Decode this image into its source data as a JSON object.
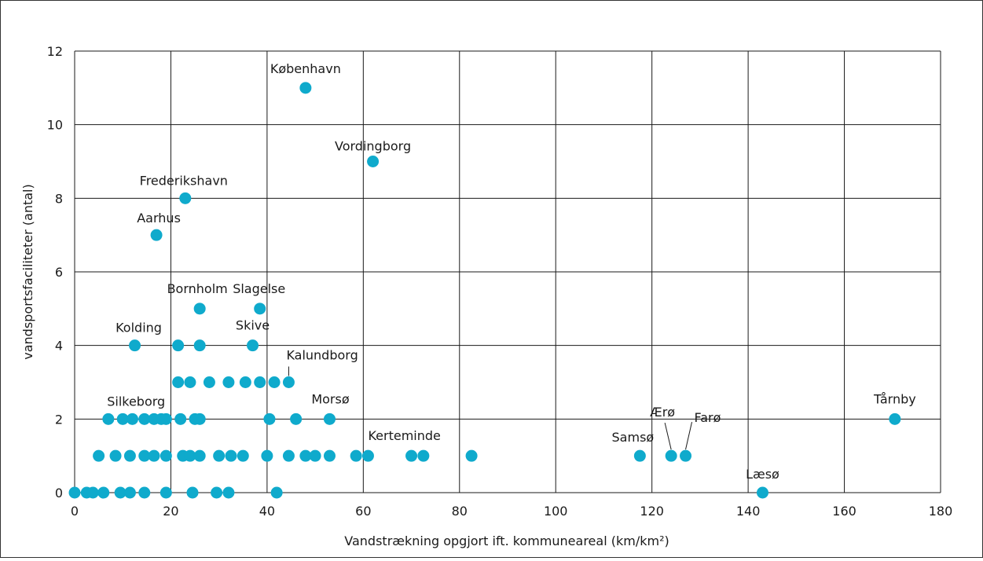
{
  "chart_data": {
    "type": "scatter",
    "title": "",
    "xlabel": "Vandstrækning opgjort ift. kommuneareal (km/km²)",
    "ylabel": "vandsportsfaciliteter (antal)",
    "xlim": [
      0,
      180
    ],
    "ylim": [
      0,
      12
    ],
    "xticks": [
      "0",
      "20",
      "40",
      "60",
      "80",
      "100",
      "120",
      "140",
      "160",
      "180"
    ],
    "yticks": [
      "0",
      "2",
      "4",
      "6",
      "8",
      "10",
      "12"
    ],
    "grid": true,
    "marker_color": "#0faacc",
    "points": [
      {
        "x": 48.0,
        "y": 11,
        "label": "København"
      },
      {
        "x": 62.0,
        "y": 9,
        "label": "Vordingborg"
      },
      {
        "x": 23.0,
        "y": 8,
        "label": "Frederikshavn"
      },
      {
        "x": 17.0,
        "y": 7,
        "label": "Aarhus"
      },
      {
        "x": 26.0,
        "y": 5,
        "label": "Bornholm"
      },
      {
        "x": 38.5,
        "y": 5,
        "label": "Slagelse"
      },
      {
        "x": 12.5,
        "y": 4,
        "label": "Kolding"
      },
      {
        "x": 37.0,
        "y": 4,
        "label": "Skive"
      },
      {
        "x": 44.5,
        "y": 3,
        "label": "Kalundborg"
      },
      {
        "x": 10.0,
        "y": 2,
        "label": "Silkeborg"
      },
      {
        "x": 53.0,
        "y": 2,
        "label": "Morsø"
      },
      {
        "x": 61.0,
        "y": 1,
        "label": "Kerteminde"
      },
      {
        "x": 117.5,
        "y": 1,
        "label": "Samsø"
      },
      {
        "x": 124.0,
        "y": 1,
        "label": "Ærø"
      },
      {
        "x": 127.0,
        "y": 1,
        "label": "Farø"
      },
      {
        "x": 143.0,
        "y": 0,
        "label": "Læsø"
      },
      {
        "x": 170.5,
        "y": 2,
        "label": "Tårnby"
      },
      {
        "x": 21.5,
        "y": 4
      },
      {
        "x": 26.0,
        "y": 4
      },
      {
        "x": 21.5,
        "y": 3
      },
      {
        "x": 24.0,
        "y": 3
      },
      {
        "x": 28.0,
        "y": 3
      },
      {
        "x": 32.0,
        "y": 3
      },
      {
        "x": 35.5,
        "y": 3
      },
      {
        "x": 38.5,
        "y": 3
      },
      {
        "x": 41.5,
        "y": 3
      },
      {
        "x": 7.0,
        "y": 2
      },
      {
        "x": 12.0,
        "y": 2
      },
      {
        "x": 14.5,
        "y": 2
      },
      {
        "x": 16.5,
        "y": 2
      },
      {
        "x": 18.0,
        "y": 2
      },
      {
        "x": 19.0,
        "y": 2
      },
      {
        "x": 22.0,
        "y": 2
      },
      {
        "x": 25.0,
        "y": 2
      },
      {
        "x": 26.0,
        "y": 2
      },
      {
        "x": 40.5,
        "y": 2
      },
      {
        "x": 46.0,
        "y": 2
      },
      {
        "x": 5.0,
        "y": 1
      },
      {
        "x": 8.5,
        "y": 1
      },
      {
        "x": 11.5,
        "y": 1
      },
      {
        "x": 14.5,
        "y": 1
      },
      {
        "x": 16.5,
        "y": 1
      },
      {
        "x": 19.0,
        "y": 1
      },
      {
        "x": 22.5,
        "y": 1
      },
      {
        "x": 24.0,
        "y": 1
      },
      {
        "x": 26.0,
        "y": 1
      },
      {
        "x": 30.0,
        "y": 1
      },
      {
        "x": 32.5,
        "y": 1
      },
      {
        "x": 35.0,
        "y": 1
      },
      {
        "x": 40.0,
        "y": 1
      },
      {
        "x": 44.5,
        "y": 1
      },
      {
        "x": 48.0,
        "y": 1
      },
      {
        "x": 50.0,
        "y": 1
      },
      {
        "x": 53.0,
        "y": 1
      },
      {
        "x": 58.5,
        "y": 1
      },
      {
        "x": 70.0,
        "y": 1
      },
      {
        "x": 72.5,
        "y": 1
      },
      {
        "x": 82.5,
        "y": 1
      },
      {
        "x": 0.0,
        "y": 0
      },
      {
        "x": 2.5,
        "y": 0
      },
      {
        "x": 3.8,
        "y": 0
      },
      {
        "x": 6.0,
        "y": 0
      },
      {
        "x": 9.5,
        "y": 0
      },
      {
        "x": 11.5,
        "y": 0
      },
      {
        "x": 14.5,
        "y": 0
      },
      {
        "x": 19.0,
        "y": 0
      },
      {
        "x": 24.5,
        "y": 0
      },
      {
        "x": 29.5,
        "y": 0
      },
      {
        "x": 32.0,
        "y": 0
      },
      {
        "x": 42.0,
        "y": 0
      }
    ]
  }
}
